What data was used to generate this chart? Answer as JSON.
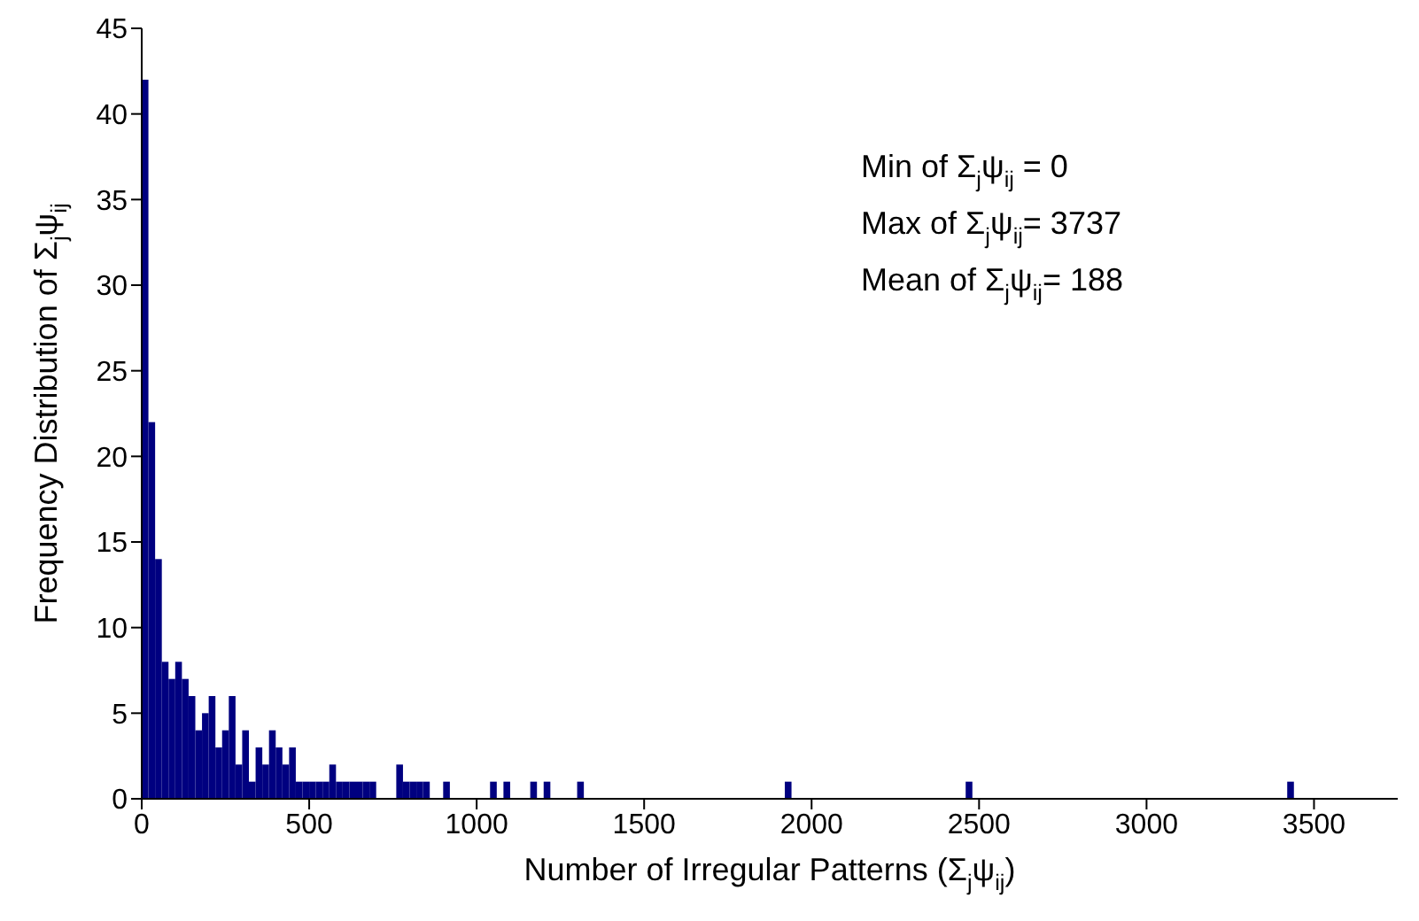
{
  "chart_data": {
    "type": "histogram",
    "xlabel": "Number of Irregular Patterns (Σ$_{j}$ψ$_{ij}$)",
    "ylabel": "Frequency Distribution of  Σ$_{j}$ψ$_{ij}$",
    "annotations": [
      "Min of Σ$_{j}$ψ$_{ij}$ = 0",
      "Max of Σ$_{j}$ψ$_{ij}$= 3737",
      "Mean of Σ$_{j}$ψ$_{ij}$= 188"
    ],
    "color": "#000080",
    "bins": [
      0,
      20,
      40,
      60,
      80,
      100,
      120,
      140,
      160,
      180,
      200,
      220,
      240,
      260,
      280,
      300,
      320,
      340,
      360,
      380,
      400,
      420,
      440,
      460,
      480,
      500,
      520,
      540,
      560,
      580,
      600,
      620,
      640,
      660,
      680,
      700,
      760,
      780,
      800,
      820,
      840,
      860,
      900,
      920,
      1040,
      1060,
      1080,
      1100,
      1160,
      1180,
      1200,
      1220,
      1300,
      1320,
      1920,
      1940,
      2460,
      2480,
      3420,
      3440
    ],
    "values": [
      42,
      22,
      14,
      8,
      7,
      8,
      7,
      6,
      4,
      5,
      6,
      3,
      4,
      6,
      2,
      4,
      1,
      3,
      2,
      4,
      3,
      2,
      3,
      1,
      1,
      1,
      1,
      1,
      2,
      1,
      1,
      1,
      1,
      1,
      1,
      0,
      2,
      1,
      1,
      1,
      1,
      0,
      1,
      0,
      1,
      0,
      1,
      0,
      1,
      0,
      1,
      0,
      1,
      0,
      1,
      0,
      1,
      0,
      1
    ],
    "xlim": [
      0,
      3750
    ],
    "xticks": [
      0,
      500,
      1000,
      1500,
      2000,
      2500,
      3000,
      3500
    ],
    "ylim": [
      0,
      45
    ],
    "yticks": [
      0,
      5,
      10,
      15,
      20,
      25,
      30,
      35,
      40,
      45
    ],
    "grid": false
  }
}
